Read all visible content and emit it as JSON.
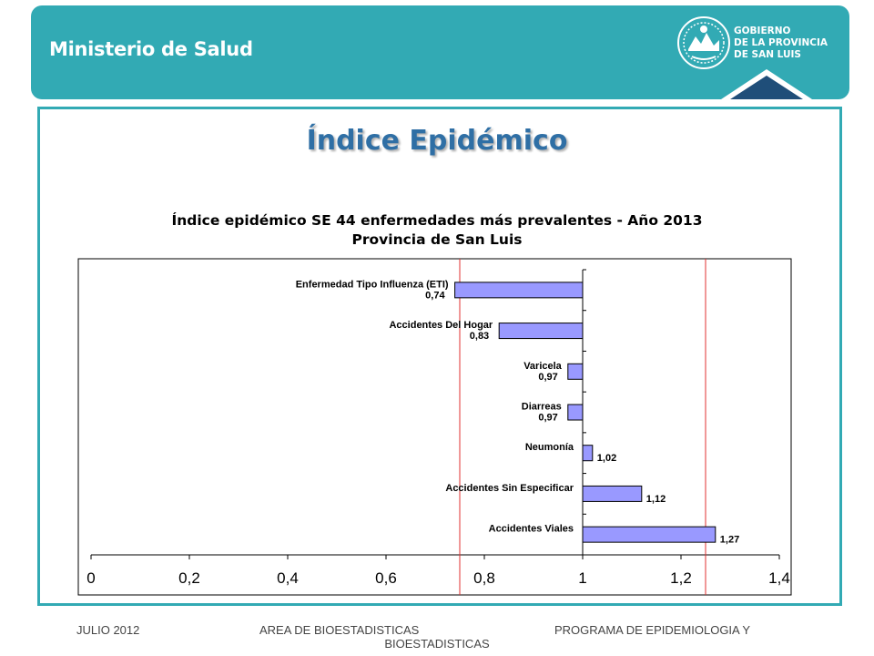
{
  "header": {
    "ministry": "Ministerio de Salud",
    "gov_lines": [
      "GOBIERNO",
      "DE LA PROVINCIA",
      "DE SAN LUIS"
    ]
  },
  "page_title": "Índice Epidémico",
  "chart_data": {
    "type": "bar",
    "orientation": "horizontal",
    "title_line1": "Índice epidémico SE 44 enfermedades más prevalentes - Año 2013",
    "title_line2": "Provincia de San Luis",
    "categories": [
      "Enfermedad Tipo Influenza (ETI)",
      "Accidentes Del Hogar",
      "Varicela",
      "Diarreas",
      "Neumonía",
      "Accidentes Sin Especificar",
      "Accidentes Viales"
    ],
    "values": [
      0.74,
      0.83,
      0.97,
      0.97,
      1.02,
      1.12,
      1.27
    ],
    "value_labels": [
      "0,74",
      "0,83",
      "0,97",
      "0,97",
      "1,02",
      "1,12",
      "1,27"
    ],
    "xlim": [
      0,
      1.4
    ],
    "x_ticks": [
      "0",
      "0,2",
      "0,4",
      "0,6",
      "0,8",
      "1",
      "1,2",
      "1,4"
    ],
    "baseline": 1,
    "reference_lines": [
      0.75,
      1.25
    ],
    "bar_color": "#9999ff",
    "reference_line_color": "#e03030",
    "grid": false
  },
  "footer": {
    "left": "JULIO 2012",
    "center_line1": "AREA DE BIOESTADISTICAS",
    "center_line2": "BIOESTADISTICAS",
    "right": "PROGRAMA  DE EPIDEMIOLOGIA Y"
  }
}
